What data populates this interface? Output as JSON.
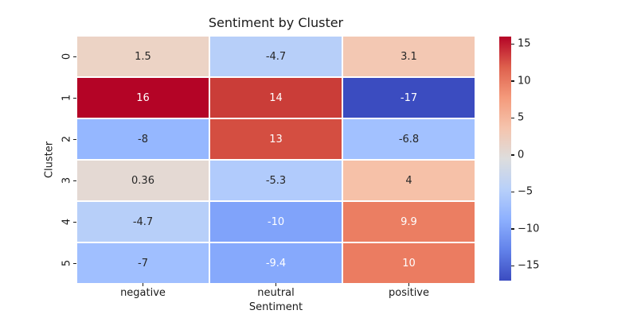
{
  "chart_data": {
    "type": "heatmap",
    "title": "Sentiment by Cluster",
    "xlabel": "Sentiment",
    "ylabel": "Cluster",
    "columns": [
      "negative",
      "neutral",
      "positive"
    ],
    "rows": [
      "0",
      "1",
      "2",
      "3",
      "4",
      "5"
    ],
    "values": [
      [
        1.5,
        -4.7,
        3.1
      ],
      [
        16,
        14,
        -17
      ],
      [
        -8,
        13,
        -6.8
      ],
      [
        0.36,
        -5.3,
        4
      ],
      [
        -4.7,
        -10,
        9.9
      ],
      [
        -7,
        -9.4,
        10
      ]
    ],
    "cell_labels": [
      [
        "1.5",
        "-4.7",
        "3.1"
      ],
      [
        "16",
        "14",
        "-17"
      ],
      [
        "-8",
        "13",
        "-6.8"
      ],
      [
        "0.36",
        "-5.3",
        "4"
      ],
      [
        "-4.7",
        "-10",
        "9.9"
      ],
      [
        "-7",
        "-9.4",
        "10"
      ]
    ],
    "cell_colors": [
      [
        "#ECD3C5",
        "#B7CFF9",
        "#F3C8B3"
      ],
      [
        "#B40426",
        "#CA3D38",
        "#3B4CC0"
      ],
      [
        "#95B7FF",
        "#D44E41",
        "#A2C1FF"
      ],
      [
        "#E4D9D3",
        "#B1CBFC",
        "#F6C1A8"
      ],
      [
        "#B7CFF9",
        "#80A3FA",
        "#EB7E62"
      ],
      [
        "#A0BFFF",
        "#86A9FC",
        "#EB7C61"
      ]
    ],
    "cell_text_colors": [
      [
        "#262626",
        "#262626",
        "#262626"
      ],
      [
        "#FFFFFF",
        "#FFFFFF",
        "#FFFFFF"
      ],
      [
        "#262626",
        "#FFFFFF",
        "#262626"
      ],
      [
        "#262626",
        "#262626",
        "#262626"
      ],
      [
        "#262626",
        "#FFFFFF",
        "#FFFFFF"
      ],
      [
        "#262626",
        "#FFFFFF",
        "#FFFFFF"
      ]
    ],
    "colormap": "coolwarm",
    "vmin": -17,
    "vmax": 16,
    "colorbar_tick_labels": [
      "15",
      "10",
      "5",
      "0",
      "−5",
      "−10",
      "−15"
    ],
    "colorbar_tick_values": [
      15,
      10,
      5,
      0,
      -5,
      -10,
      -15
    ],
    "colorbar_gradient_bottom_to_top": [
      "#3B4CC0",
      "#6282EA",
      "#8DB0FE",
      "#B8D0F9",
      "#DDDDDD",
      "#F5C4AD",
      "#F49A7B",
      "#DE604D",
      "#B40426"
    ],
    "grid_line_color": "#FFFFFF",
    "legend_position": "right-colorbar",
    "grid": false
  }
}
